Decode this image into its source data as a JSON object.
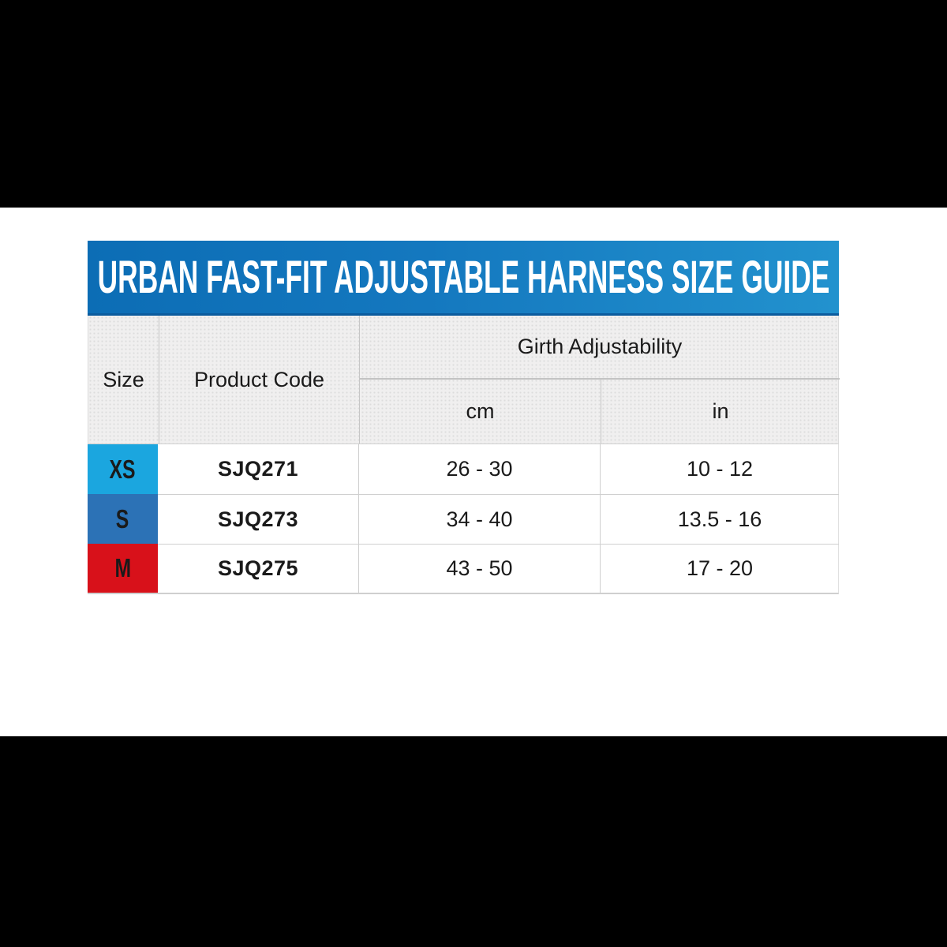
{
  "title": "URBAN FAST-FIT ADJUSTABLE HARNESS SIZE GUIDE",
  "header": {
    "size": "Size",
    "product_code": "Product Code",
    "girth": "Girth Adjustability",
    "cm": "cm",
    "in": "in"
  },
  "rows": [
    {
      "size": "XS",
      "chip_color": "#1BA6DF",
      "code": "SJQ271",
      "cm": "26 - 30",
      "in": "10 - 12"
    },
    {
      "size": "S",
      "chip_color": "#2C72B6",
      "code": "SJQ273",
      "cm": "34 - 40",
      "in": "13.5 - 16"
    },
    {
      "size": "M",
      "chip_color": "#D8111A",
      "code": "SJQ275",
      "cm": "43 - 50",
      "in": "17 - 20"
    }
  ],
  "colors": {
    "banner_gradient_left": "#0C6DB5",
    "banner_gradient_right": "#2292CE",
    "banner_bottom_edge": "#0B5B9D",
    "size_xs": "#1BA6DF",
    "size_s": "#2C72B6",
    "size_m": "#D8111A",
    "header_bg": "#F0EFEF",
    "cell_border": "#CFCFCF",
    "letterbox": "#000000",
    "title_text": "#FFFFFF",
    "body_text": "#1A1A1A"
  },
  "chart_data": {
    "type": "table",
    "title": "URBAN FAST-FIT ADJUSTABLE HARNESS SIZE GUIDE",
    "columns": [
      "Size",
      "Product Code",
      "Girth Adjustability (cm)",
      "Girth Adjustability (in)"
    ],
    "rows": [
      [
        "XS",
        "SJQ271",
        "26 - 30",
        "10 - 12"
      ],
      [
        "S",
        "SJQ273",
        "34 - 40",
        "13.5 - 16"
      ],
      [
        "M",
        "SJQ275",
        "43 - 50",
        "17 - 20"
      ]
    ]
  }
}
